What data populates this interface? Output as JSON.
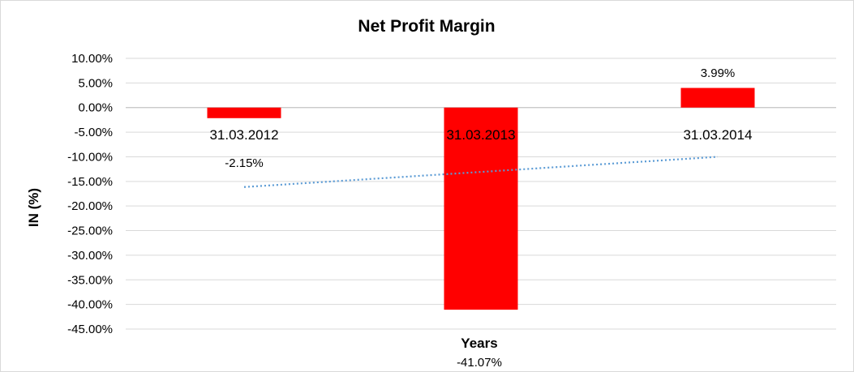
{
  "chart_data": {
    "type": "bar",
    "title": "Net Profit Margin",
    "xlabel": "Years",
    "ylabel": "IN (%)",
    "categories": [
      "31.03.2012",
      "31.03.2013",
      "31.03.2014"
    ],
    "values": [
      -2.15,
      -41.07,
      3.99
    ],
    "data_labels": [
      "-2.15%",
      "-41.07%",
      "3.99%"
    ],
    "ylim": [
      -45,
      10
    ],
    "yticks": [
      10,
      5,
      0,
      -5,
      -10,
      -15,
      -20,
      -25,
      -30,
      -35,
      -40,
      -45
    ],
    "ytick_labels": [
      "10.00%",
      "5.00%",
      "0.00%",
      "-5.00%",
      "-10.00%",
      "-15.00%",
      "-20.00%",
      "-25.00%",
      "-30.00%",
      "-35.00%",
      "-40.00%",
      "-45.00%"
    ],
    "trendline": {
      "type": "linear",
      "style": "dotted"
    },
    "grid": true,
    "legend": "none",
    "colors": {
      "bar": "#ff0000",
      "trendline": "#5b9bd5",
      "grid": "#d9d9d9",
      "axis": "#bfbfbf"
    }
  }
}
